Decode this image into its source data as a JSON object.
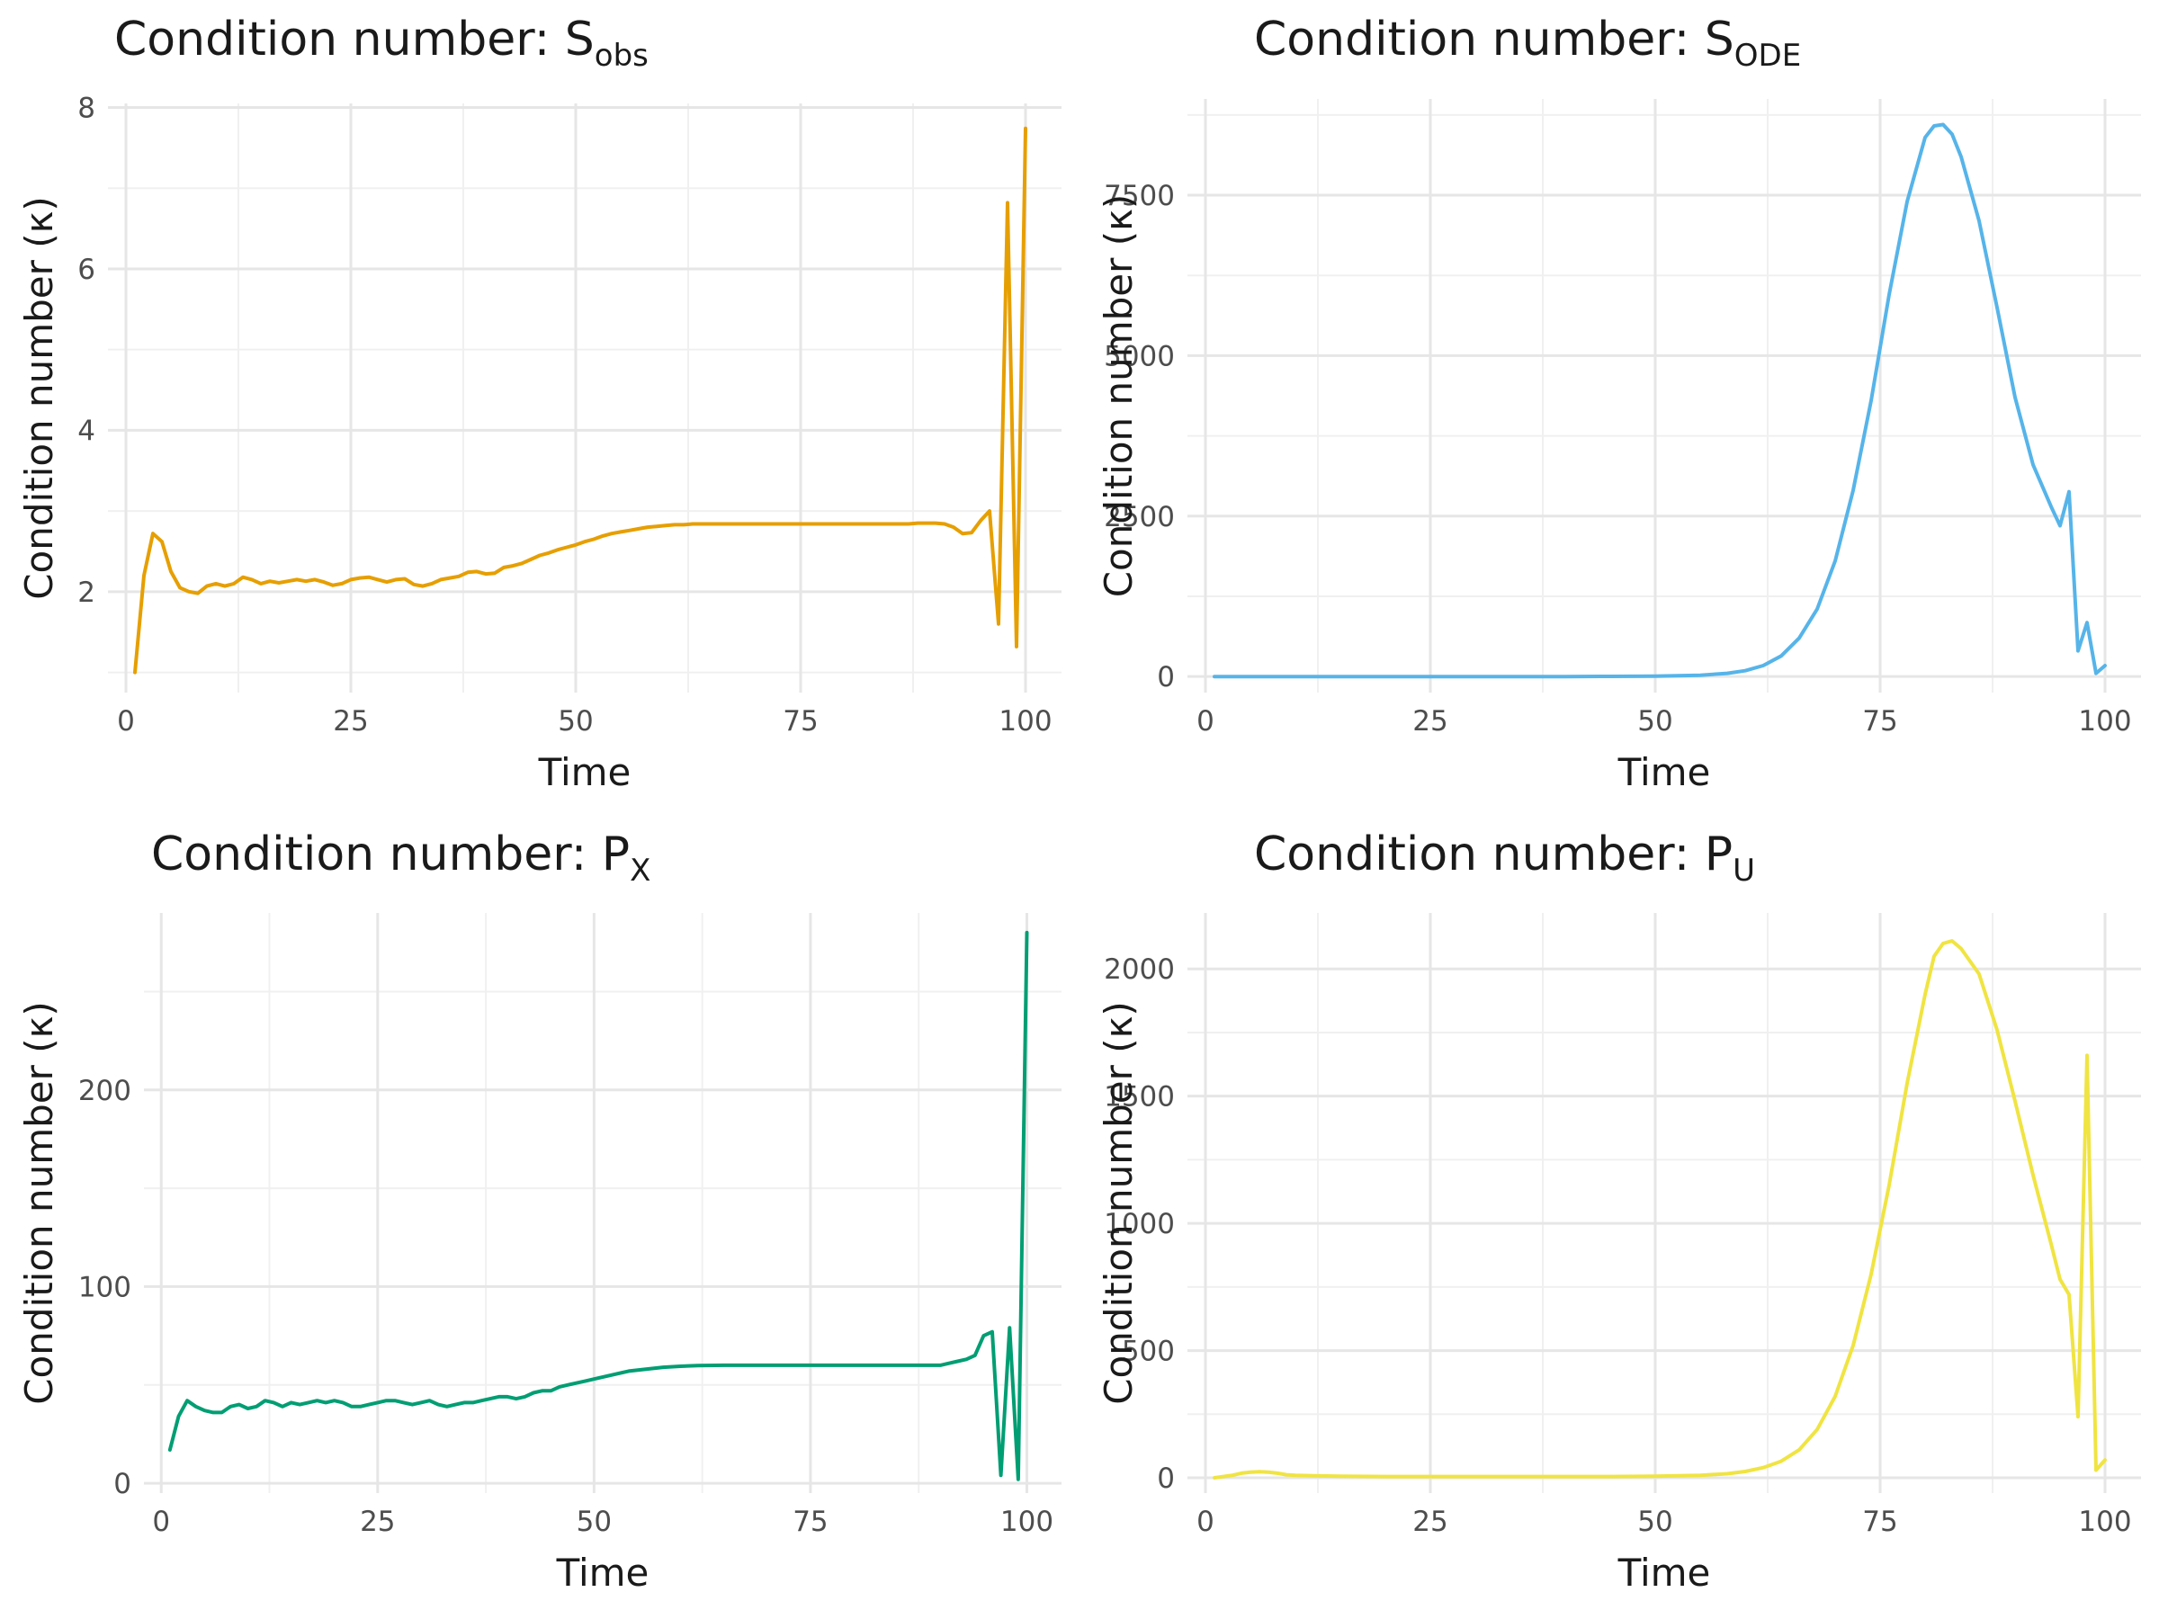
{
  "chart_data": [
    {
      "type": "line",
      "title_main": "Condition number: S",
      "title_sub": "obs",
      "xlabel": "Time",
      "ylabel": "Condition number (κ)",
      "xlim": [
        -2,
        104
      ],
      "ylim": [
        0.75,
        8.05
      ],
      "xticks": [
        0,
        25,
        50,
        75,
        100
      ],
      "xtick_labels": [
        "0",
        "25",
        "50",
        "75",
        "100"
      ],
      "yticks": [
        2,
        4,
        6,
        8
      ],
      "ytick_labels": [
        "2",
        "4",
        "6",
        "8"
      ],
      "color": "#E69F00",
      "series": [
        {
          "x": [
            1,
            2,
            3,
            4,
            5,
            6,
            7,
            8,
            9,
            10,
            11,
            12,
            13,
            14,
            15,
            16,
            17,
            18,
            19,
            20,
            21,
            22,
            23,
            24,
            25,
            26,
            27,
            28,
            29,
            30,
            31,
            32,
            33,
            34,
            35,
            36,
            37,
            38,
            39,
            40,
            41,
            42,
            43,
            44,
            45,
            46,
            47,
            48,
            49,
            50,
            51,
            52,
            53,
            54,
            55,
            56,
            57,
            58,
            59,
            60,
            61,
            62,
            63,
            64,
            65,
            66,
            67,
            68,
            69,
            70,
            71,
            72,
            73,
            74,
            75,
            76,
            77,
            78,
            79,
            80,
            81,
            82,
            83,
            84,
            85,
            86,
            87,
            88,
            89,
            90,
            91,
            92,
            93,
            94,
            95,
            96,
            97,
            98,
            99,
            100
          ],
          "y": [
            1.0,
            2.2,
            2.72,
            2.62,
            2.25,
            2.05,
            2.0,
            1.98,
            2.07,
            2.1,
            2.07,
            2.1,
            2.18,
            2.15,
            2.1,
            2.13,
            2.11,
            2.13,
            2.15,
            2.13,
            2.15,
            2.12,
            2.08,
            2.1,
            2.15,
            2.17,
            2.18,
            2.15,
            2.12,
            2.15,
            2.16,
            2.09,
            2.07,
            2.1,
            2.15,
            2.17,
            2.19,
            2.24,
            2.25,
            2.22,
            2.23,
            2.3,
            2.32,
            2.35,
            2.4,
            2.45,
            2.48,
            2.52,
            2.55,
            2.58,
            2.62,
            2.65,
            2.69,
            2.72,
            2.74,
            2.76,
            2.78,
            2.8,
            2.81,
            2.82,
            2.83,
            2.83,
            2.84,
            2.84,
            2.84,
            2.84,
            2.84,
            2.84,
            2.84,
            2.84,
            2.84,
            2.84,
            2.84,
            2.84,
            2.84,
            2.84,
            2.84,
            2.84,
            2.84,
            2.84,
            2.84,
            2.84,
            2.84,
            2.84,
            2.84,
            2.84,
            2.84,
            2.85,
            2.85,
            2.85,
            2.84,
            2.8,
            2.72,
            2.73,
            2.88,
            3.0,
            1.6,
            6.82,
            1.32,
            7.74
          ]
        }
      ]
    },
    {
      "type": "line",
      "title_main": "Condition number: S",
      "title_sub": "ODE",
      "xlabel": "Time",
      "ylabel": "Condition number (κ)",
      "xlim": [
        -2,
        104
      ],
      "ylim": [
        -250,
        9000
      ],
      "xticks": [
        0,
        25,
        50,
        75,
        100
      ],
      "xtick_labels": [
        "0",
        "25",
        "50",
        "75",
        "100"
      ],
      "yticks": [
        0,
        2500,
        5000,
        7500
      ],
      "ytick_labels": [
        "0",
        "2500",
        "5000",
        "7500"
      ],
      "color": "#56B4E9",
      "series": [
        {
          "x": [
            1,
            5,
            10,
            15,
            20,
            25,
            30,
            35,
            40,
            45,
            50,
            55,
            58,
            60,
            62,
            64,
            66,
            68,
            70,
            72,
            74,
            76,
            78,
            80,
            81,
            82,
            83,
            84,
            86,
            88,
            90,
            92,
            94,
            95,
            96,
            97,
            98,
            99,
            100
          ],
          "y": [
            0,
            0,
            0,
            0,
            0,
            0,
            0,
            0,
            0,
            2,
            5,
            20,
            50,
            90,
            170,
            320,
            600,
            1050,
            1800,
            2900,
            4300,
            5950,
            7400,
            8400,
            8580,
            8600,
            8450,
            8100,
            7100,
            5750,
            4350,
            3300,
            2650,
            2350,
            2880,
            400,
            840,
            50,
            170
          ]
        }
      ]
    },
    {
      "type": "line",
      "title_main": "Condition number: P",
      "title_sub": "X",
      "xlabel": "Time",
      "ylabel": "Condition number (κ)",
      "xlim": [
        -2,
        104
      ],
      "ylim": [
        -5,
        290
      ],
      "xticks": [
        0,
        25,
        50,
        75,
        100
      ],
      "xtick_labels": [
        "0",
        "25",
        "50",
        "75",
        "100"
      ],
      "yticks": [
        0,
        100,
        200
      ],
      "ytick_labels": [
        "0",
        "100",
        "200"
      ],
      "color": "#009E73",
      "series": [
        {
          "x": [
            1,
            2,
            3,
            4,
            5,
            6,
            7,
            8,
            9,
            10,
            11,
            12,
            13,
            14,
            15,
            16,
            17,
            18,
            19,
            20,
            21,
            22,
            23,
            24,
            25,
            26,
            27,
            28,
            29,
            30,
            31,
            32,
            33,
            34,
            35,
            36,
            37,
            38,
            39,
            40,
            41,
            42,
            43,
            44,
            45,
            46,
            47,
            48,
            49,
            50,
            52,
            54,
            56,
            58,
            60,
            62,
            65,
            70,
            75,
            80,
            85,
            88,
            90,
            91,
            92,
            93,
            94,
            95,
            96,
            97,
            98,
            99,
            100
          ],
          "y": [
            17,
            34,
            42,
            39,
            37,
            36,
            36,
            39,
            40,
            38,
            39,
            42,
            41,
            39,
            41,
            40,
            41,
            42,
            41,
            42,
            41,
            39,
            39,
            40,
            41,
            42,
            42,
            41,
            40,
            41,
            42,
            40,
            39,
            40,
            41,
            41,
            42,
            43,
            44,
            44,
            43,
            44,
            46,
            47,
            47,
            49,
            50,
            51,
            52,
            53,
            55,
            57,
            58,
            59,
            59.5,
            59.8,
            60,
            60,
            60,
            60,
            60,
            60,
            60,
            61,
            62,
            63,
            65,
            75,
            77,
            4,
            79,
            2,
            280
          ]
        }
      ]
    },
    {
      "type": "line",
      "title_main": "Condition number: P",
      "title_sub": "U",
      "xlabel": "Time",
      "ylabel": "Condition number (κ)",
      "xlim": [
        -2,
        104
      ],
      "ylim": [
        -60,
        2220
      ],
      "xticks": [
        0,
        25,
        50,
        75,
        100
      ],
      "xtick_labels": [
        "0",
        "25",
        "50",
        "75",
        "100"
      ],
      "yticks": [
        0,
        500,
        1000,
        1500,
        2000
      ],
      "ytick_labels": [
        "0",
        "500",
        "1000",
        "1500",
        "2000"
      ],
      "color": "#F0E442",
      "series": [
        {
          "x": [
            1,
            2,
            3,
            4,
            5,
            6,
            7,
            8,
            9,
            10,
            12,
            15,
            20,
            25,
            30,
            35,
            40,
            45,
            50,
            55,
            58,
            60,
            62,
            64,
            66,
            68,
            70,
            72,
            74,
            76,
            78,
            80,
            81,
            82,
            83,
            84,
            86,
            88,
            90,
            92,
            94,
            95,
            96,
            97,
            98,
            99,
            100
          ],
          "y": [
            0,
            5,
            10,
            18,
            22,
            24,
            22,
            18,
            12,
            10,
            8,
            6,
            5,
            5,
            5,
            5,
            5,
            5,
            6,
            10,
            16,
            25,
            40,
            65,
            110,
            190,
            320,
            520,
            800,
            1150,
            1550,
            1900,
            2050,
            2100,
            2110,
            2080,
            1980,
            1760,
            1480,
            1190,
            920,
            780,
            720,
            240,
            1660,
            30,
            70
          ]
        }
      ]
    }
  ]
}
